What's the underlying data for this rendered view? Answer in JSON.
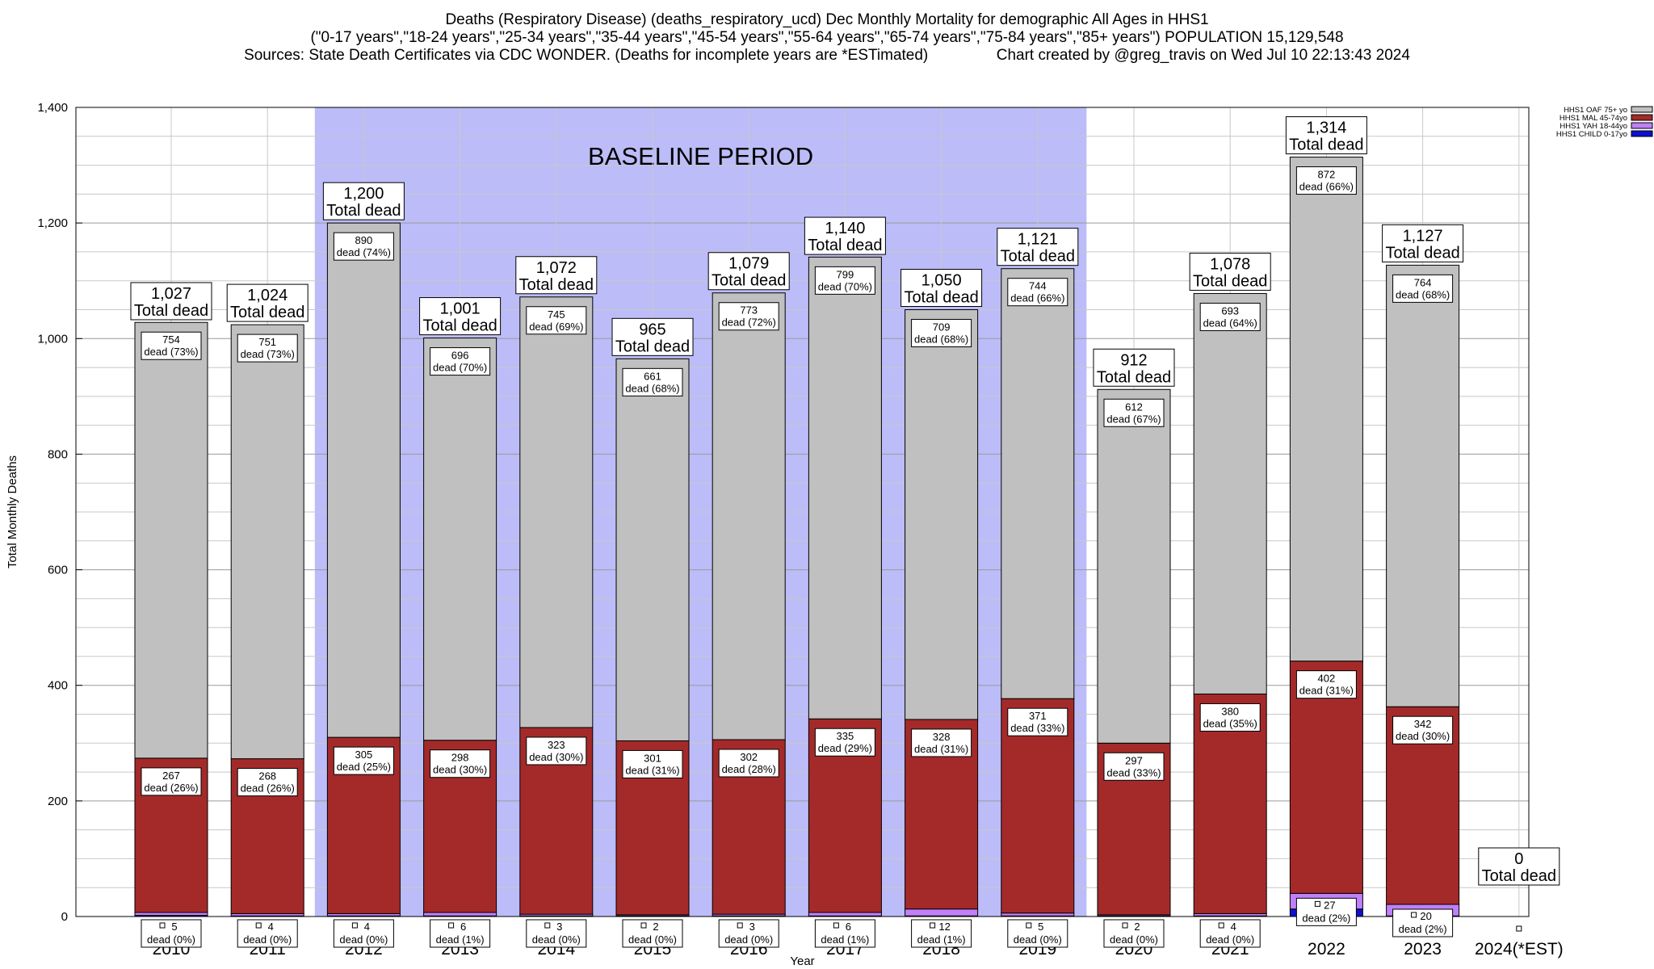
{
  "header": {
    "line1": "Deaths (Respiratory Disease) (deaths_respiratory_ucd) Dec Monthly Mortality for demographic All Ages in HHS1",
    "line2": "(\"0-17 years\",\"18-24 years\",\"25-34 years\",\"35-44 years\",\"45-54 years\",\"55-64 years\",\"65-74 years\",\"75-84 years\",\"85+ years\") POPULATION 15,129,548",
    "line3": "Sources: State Death Certificates via CDC WONDER. (Deaths for incomplete years are *ESTimated)                Chart created by @greg_travis on Wed Jul 10 22:13:43 2024"
  },
  "chart_data": {
    "type": "bar",
    "stacked": true,
    "title": "Deaths (Respiratory Disease) (deaths_respiratory_ucd) Dec Monthly Mortality for demographic All Ages in HHS1",
    "xlabel": "Year",
    "ylabel": "Total Monthly Deaths",
    "ylim": [
      0,
      1400
    ],
    "yticks": [
      0,
      200,
      400,
      600,
      800,
      1000,
      1200,
      1400
    ],
    "ytick_labels": [
      "0",
      "200",
      "400",
      "600",
      "800",
      "1,000",
      "1,200",
      "1,400"
    ],
    "grid": true,
    "legend_position": "top-right",
    "baseline_label": "BASELINE PERIOD",
    "baseline_range": [
      "2012",
      "2019"
    ],
    "baseline_color": "#bcbcf8",
    "total_suffix": "Total dead",
    "dead_word": "dead",
    "categories": [
      "2010",
      "2011",
      "2012",
      "2013",
      "2014",
      "2015",
      "2016",
      "2017",
      "2018",
      "2019",
      "2020",
      "2021",
      "2022",
      "2023",
      "2024(*EST)"
    ],
    "totals": [
      1027,
      1024,
      1200,
      1001,
      1072,
      965,
      1079,
      1140,
      1050,
      1121,
      912,
      1078,
      1314,
      1127,
      0
    ],
    "total_labels": [
      "1,027",
      "1,024",
      "1,200",
      "1,001",
      "1,072",
      "965",
      "1,079",
      "1,140",
      "1,050",
      "1,121",
      "912",
      "1,078",
      "1,314",
      "1,127",
      "0"
    ],
    "series": [
      {
        "name": "HHS1 CHILD 0-17yo",
        "color": "#1010d0",
        "values": [
          2,
          1,
          1,
          1,
          1,
          1,
          1,
          1,
          1,
          1,
          1,
          1,
          13,
          1,
          0
        ]
      },
      {
        "name": "HHS1 YAH 18-44yo",
        "color": "#c080f8",
        "values": [
          5,
          4,
          4,
          6,
          3,
          2,
          3,
          6,
          12,
          5,
          2,
          4,
          27,
          20,
          0
        ],
        "pcts": [
          "0%",
          "0%",
          "0%",
          "1%",
          "0%",
          "0%",
          "0%",
          "1%",
          "1%",
          "0%",
          "0%",
          "0%",
          "2%",
          "2%",
          ""
        ]
      },
      {
        "name": "HHS1 MAL 45-74yo",
        "color": "#a42a2a",
        "values": [
          267,
          268,
          305,
          298,
          323,
          301,
          302,
          335,
          328,
          371,
          297,
          380,
          402,
          342,
          0
        ],
        "pcts": [
          "26%",
          "26%",
          "25%",
          "30%",
          "30%",
          "31%",
          "28%",
          "29%",
          "31%",
          "33%",
          "33%",
          "35%",
          "31%",
          "30%",
          ""
        ]
      },
      {
        "name": "HHS1 OAF 75+ yo",
        "color": "#c0c0c0",
        "values": [
          754,
          751,
          890,
          696,
          745,
          661,
          773,
          799,
          709,
          744,
          612,
          693,
          872,
          764,
          0
        ],
        "pcts": [
          "73%",
          "73%",
          "74%",
          "70%",
          "69%",
          "68%",
          "72%",
          "70%",
          "68%",
          "66%",
          "67%",
          "64%",
          "66%",
          "68%",
          ""
        ]
      }
    ],
    "legend_order": [
      "HHS1 OAF 75+ yo",
      "HHS1 MAL 45-74yo",
      "HHS1 YAH 18-44yo",
      "HHS1 CHILD 0-17yo"
    ]
  }
}
